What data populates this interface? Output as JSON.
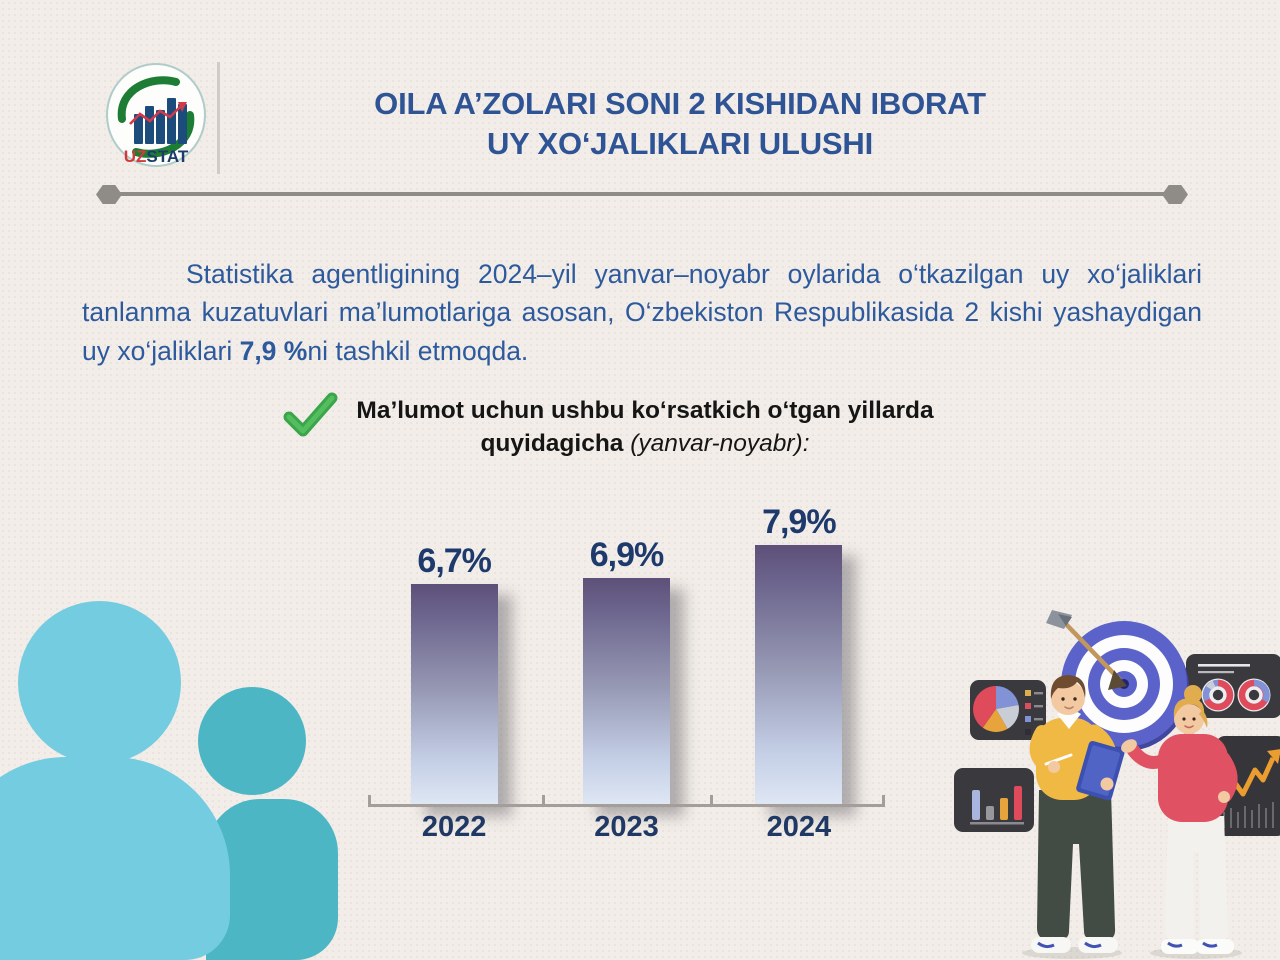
{
  "page": {
    "background": "#f2ede8"
  },
  "logo": {
    "uz": "UZ",
    "stat": "STAT",
    "uz_color": "#d23a3a",
    "stat_color": "#1d3a6b",
    "bar_color": "#1c4c7c",
    "swoosh_color": "#1e7d35",
    "trend_color": "#d2394a"
  },
  "header": {
    "title_line1": "OILA A’ZOLARI SONI  2 KISHIDAN IBORAT",
    "title_line2": "UY XO‘JALIKLARI ULUSHI",
    "title_color": "#2f5496"
  },
  "intro": {
    "before_bold": "Statistika agentligining 2024–yil yanvar–noyabr oylarida o‘tkazilgan uy xo‘jaliklari tanlanma kuzatuvlari ma’lumotlariga asosan, O‘zbekiston Respublikasida 2 kishi yashaydigan uy xo‘jaliklari ",
    "bold": "7,9 %",
    "after_bold": "ni tashkil etmoqda.",
    "text_color": "#2d5a9d"
  },
  "note": {
    "line1": "Ma’lumot uchun ushbu ko‘rsatkich o‘tgan yillarda",
    "line2_bold": "quyidagicha",
    "line2_italic": " (yanvar-noyabr):",
    "check_color": "#3aa54a"
  },
  "chart_data": {
    "type": "bar",
    "categories": [
      "2022",
      "2023",
      "2024"
    ],
    "values": [
      6.7,
      6.9,
      7.9
    ],
    "value_labels": [
      "6,7%",
      "6,9%",
      "7,9%"
    ],
    "title": "",
    "xlabel": "",
    "ylabel": "",
    "ylim": [
      0,
      8.2
    ],
    "grid": false,
    "legend": false,
    "bar_gradient_top": "#5d5079",
    "bar_gradient_bottom": "#dfe7f4",
    "value_label_color": "#1e3a6c",
    "category_label_color": "#1f3864",
    "axis_color": "#a39e99"
  },
  "decorations": {
    "divider_color": "#8f8b87",
    "silhouette_front_color": "#74cce0",
    "silhouette_back_color": "#4cb6c5",
    "target_color": "#5b63cb",
    "panel_color": "#3a3a3e"
  },
  "icons": {
    "checkmark-icon": "✔",
    "uzstat-logo": "bar-chart-with-green-swoosh",
    "people-silhouette-icon": "two-person-silhouette",
    "target-icon": "bullseye-with-arrow",
    "pie-chart-icon": "pie-on-dark-panel",
    "bar-chart-icon": "bars-on-dark-panel",
    "donut-charts-icon": "two-donuts-on-dark-panel",
    "line-chart-icon": "rising-zigzag-arrow-panel"
  }
}
